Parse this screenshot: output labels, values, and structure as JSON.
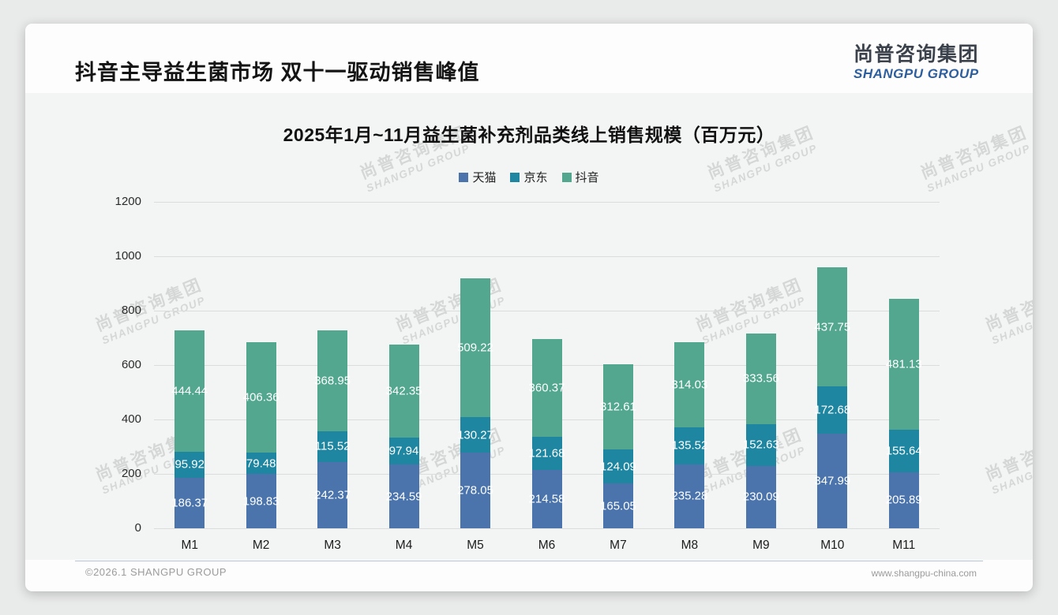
{
  "page": {
    "header_title": "抖音主导益生菌市场 双十一驱动销售峰值",
    "logo": {
      "cn": "尚普咨询集团",
      "en": "SHANGPU GROUP"
    },
    "watermark": {
      "cn": "尚普咨询集团",
      "en": "SHANGPU GROUP"
    },
    "footer": {
      "left": "©2026.1 SHANGPU GROUP",
      "right": "www.shangpu-china.com"
    }
  },
  "chart_data": {
    "type": "bar",
    "stacked": true,
    "title": "2025年1月~11月益生菌补充剂品类线上销售规模（百万元）",
    "categories": [
      "M1",
      "M2",
      "M3",
      "M4",
      "M5",
      "M6",
      "M7",
      "M8",
      "M9",
      "M10",
      "M11"
    ],
    "series": [
      {
        "name": "天猫",
        "color": "#4a74ab",
        "values": [
          186.37,
          198.83,
          242.37,
          234.59,
          278.05,
          214.58,
          165.05,
          235.28,
          230.09,
          347.99,
          205.89
        ]
      },
      {
        "name": "京东",
        "color": "#1e86a0",
        "values": [
          95.92,
          79.48,
          115.52,
          97.94,
          130.27,
          121.68,
          124.09,
          135.52,
          152.63,
          172.68,
          155.64
        ]
      },
      {
        "name": "抖音",
        "color": "#52a78e",
        "values": [
          444.44,
          406.36,
          368.95,
          342.35,
          509.22,
          360.37,
          312.61,
          314.03,
          333.56,
          437.75,
          481.13
        ]
      }
    ],
    "ylim": [
      0,
      1200
    ],
    "ytick_step": 200,
    "grid": true,
    "legend_position": "top",
    "value_labels": "inside-white"
  }
}
